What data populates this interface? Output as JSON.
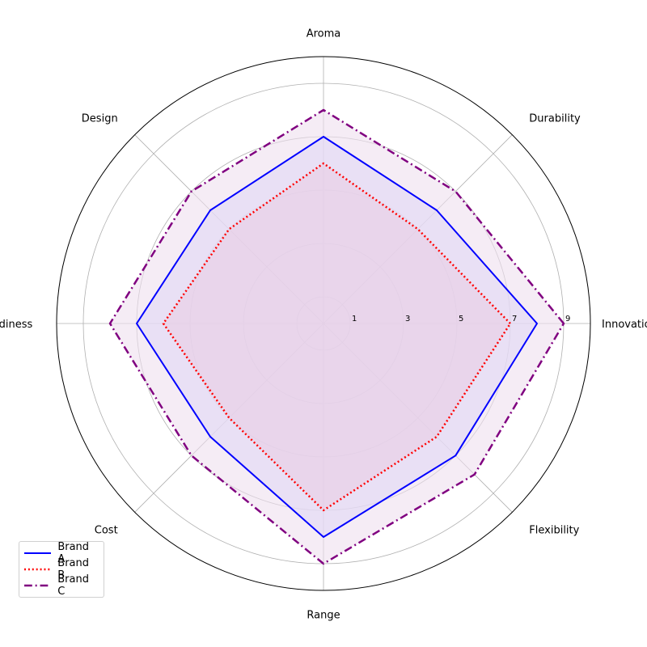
{
  "chart_data": {
    "type": "radar",
    "axes": [
      "Innovation",
      "Durability",
      "Aroma",
      "Design",
      "Trendiness",
      "Cost",
      "Range",
      "Flexibility"
    ],
    "radial_ticks": [
      1,
      3,
      5,
      7,
      9
    ],
    "rlim": [
      0,
      10
    ],
    "grid": true,
    "legend_position": "lower-left",
    "series": [
      {
        "name": "Brand A",
        "values": [
          8,
          6,
          7,
          6,
          7,
          6,
          8,
          7
        ],
        "color": "#0000ff",
        "line_style": "solid",
        "fill": "#ccccff"
      },
      {
        "name": "Brand B",
        "values": [
          7,
          5,
          6,
          5,
          6,
          5,
          7,
          6
        ],
        "color": "#ff0000",
        "line_style": "dotted",
        "fill": "#dfb3d6"
      },
      {
        "name": "Brand C",
        "values": [
          9,
          7,
          8,
          7,
          8,
          7,
          9,
          8
        ],
        "color": "#800080",
        "line_style": "dashdot",
        "fill": "#efe0ef"
      }
    ]
  }
}
